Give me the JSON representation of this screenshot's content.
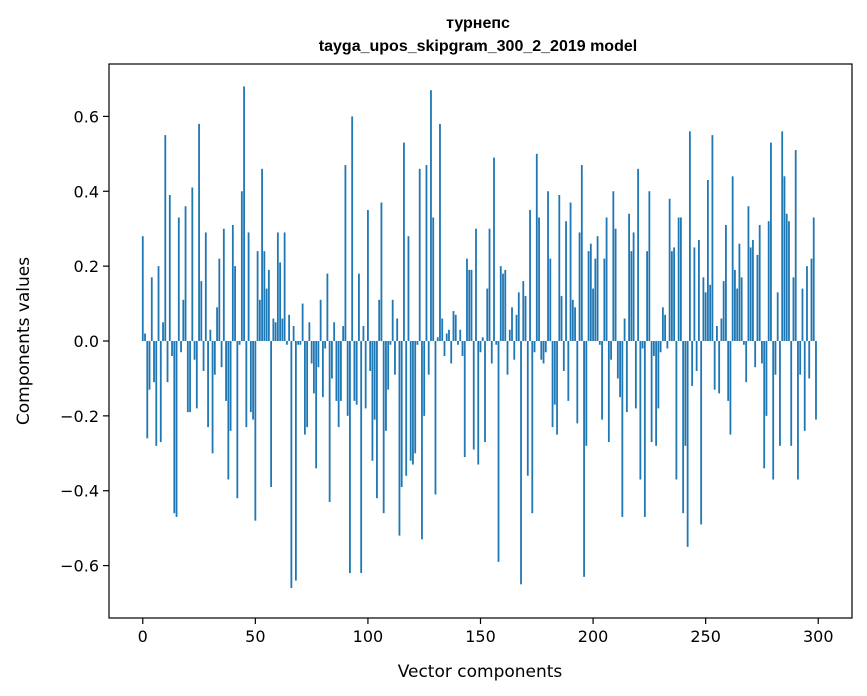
{
  "chart_data": {
    "type": "bar",
    "title": "турнепс",
    "subtitle": "tayga_upos_skipgram_300_2_2019 model",
    "xlabel": "Vector components",
    "ylabel": "Components values",
    "xlim": [
      -15,
      315
    ],
    "ylim": [
      -0.74,
      0.74
    ],
    "xticks": [
      0,
      50,
      100,
      150,
      200,
      250,
      300
    ],
    "xtick_labels": [
      "0",
      "50",
      "100",
      "150",
      "200",
      "250",
      "300"
    ],
    "yticks": [
      -0.6,
      -0.4,
      -0.2,
      0.0,
      0.2,
      0.4,
      0.6
    ],
    "ytick_labels": [
      "−0.6",
      "−0.4",
      "−0.2",
      "0.0",
      "0.2",
      "0.4",
      "0.6"
    ],
    "grid": false,
    "bar_color": "#1f77b4",
    "x": [
      0,
      1,
      2,
      3,
      4,
      5,
      6,
      7,
      8,
      9,
      10,
      11,
      12,
      13,
      14,
      15,
      16,
      17,
      18,
      19,
      20,
      21,
      22,
      23,
      24,
      25,
      26,
      27,
      28,
      29,
      30,
      31,
      32,
      33,
      34,
      35,
      36,
      37,
      38,
      39,
      40,
      41,
      42,
      43,
      44,
      45,
      46,
      47,
      48,
      49,
      50,
      51,
      52,
      53,
      54,
      55,
      56,
      57,
      58,
      59,
      60,
      61,
      62,
      63,
      64,
      65,
      66,
      67,
      68,
      69,
      70,
      71,
      72,
      73,
      74,
      75,
      76,
      77,
      78,
      79,
      80,
      81,
      82,
      83,
      84,
      85,
      86,
      87,
      88,
      89,
      90,
      91,
      92,
      93,
      94,
      95,
      96,
      97,
      98,
      99,
      100,
      101,
      102,
      103,
      104,
      105,
      106,
      107,
      108,
      109,
      110,
      111,
      112,
      113,
      114,
      115,
      116,
      117,
      118,
      119,
      120,
      121,
      122,
      123,
      124,
      125,
      126,
      127,
      128,
      129,
      130,
      131,
      132,
      133,
      134,
      135,
      136,
      137,
      138,
      139,
      140,
      141,
      142,
      143,
      144,
      145,
      146,
      147,
      148,
      149,
      150,
      151,
      152,
      153,
      154,
      155,
      156,
      157,
      158,
      159,
      160,
      161,
      162,
      163,
      164,
      165,
      166,
      167,
      168,
      169,
      170,
      171,
      172,
      173,
      174,
      175,
      176,
      177,
      178,
      179,
      180,
      181,
      182,
      183,
      184,
      185,
      186,
      187,
      188,
      189,
      190,
      191,
      192,
      193,
      194,
      195,
      196,
      197,
      198,
      199,
      200,
      201,
      202,
      203,
      204,
      205,
      206,
      207,
      208,
      209,
      210,
      211,
      212,
      213,
      214,
      215,
      216,
      217,
      218,
      219,
      220,
      221,
      222,
      223,
      224,
      225,
      226,
      227,
      228,
      229,
      230,
      231,
      232,
      233,
      234,
      235,
      236,
      237,
      238,
      239,
      240,
      241,
      242,
      243,
      244,
      245,
      246,
      247,
      248,
      249,
      250,
      251,
      252,
      253,
      254,
      255,
      256,
      257,
      258,
      259,
      260,
      261,
      262,
      263,
      264,
      265,
      266,
      267,
      268,
      269,
      270,
      271,
      272,
      273,
      274,
      275,
      276,
      277,
      278,
      279,
      280,
      281,
      282,
      283,
      284,
      285,
      286,
      287,
      288,
      289,
      290,
      291,
      292,
      293,
      294,
      295,
      296,
      297,
      298,
      299
    ],
    "values": [
      0.28,
      0.02,
      -0.26,
      -0.13,
      0.17,
      -0.11,
      -0.28,
      0.2,
      -0.27,
      0.05,
      0.55,
      -0.11,
      0.39,
      -0.04,
      -0.46,
      -0.47,
      0.33,
      -0.03,
      0.11,
      0.36,
      -0.19,
      -0.19,
      0.41,
      -0.05,
      -0.18,
      0.58,
      0.16,
      -0.08,
      0.29,
      -0.23,
      0.03,
      -0.3,
      -0.09,
      0.09,
      0.22,
      -0.07,
      0.3,
      -0.16,
      -0.37,
      -0.24,
      0.31,
      0.2,
      -0.42,
      -0.01,
      0.4,
      0.68,
      -0.23,
      0.29,
      -0.19,
      -0.21,
      -0.48,
      0.24,
      0.11,
      0.46,
      0.24,
      0.14,
      0.19,
      -0.39,
      0.06,
      0.05,
      0.29,
      0.21,
      0.06,
      0.29,
      -0.01,
      0.07,
      -0.66,
      0.04,
      -0.64,
      -0.01,
      -0.01,
      0.1,
      -0.25,
      -0.23,
      0.05,
      -0.06,
      -0.14,
      -0.34,
      -0.07,
      0.11,
      -0.15,
      -0.02,
      0.18,
      -0.43,
      -0.1,
      0.05,
      -0.16,
      -0.23,
      -0.16,
      0.04,
      0.47,
      -0.2,
      -0.62,
      0.6,
      -0.16,
      -0.17,
      0.18,
      -0.62,
      0.04,
      -0.18,
      0.35,
      -0.08,
      -0.32,
      -0.21,
      -0.42,
      0.11,
      0.37,
      -0.46,
      -0.24,
      -0.13,
      -0.01,
      0.11,
      -0.09,
      0.06,
      -0.52,
      -0.39,
      0.53,
      -0.36,
      0.28,
      -0.32,
      -0.33,
      -0.3,
      -0.01,
      0.46,
      -0.53,
      -0.2,
      0.47,
      -0.09,
      0.67,
      0.33,
      -0.41,
      0.01,
      0.58,
      0.06,
      -0.04,
      0.02,
      0.03,
      -0.06,
      0.08,
      0.07,
      -0.01,
      0.03,
      -0.04,
      -0.31,
      0.22,
      0.19,
      0.19,
      -0.29,
      0.3,
      -0.33,
      -0.03,
      0.01,
      -0.27,
      0.14,
      0.3,
      -0.06,
      0.49,
      -0.01,
      -0.59,
      0.2,
      0.18,
      0.19,
      -0.09,
      0.03,
      0.09,
      -0.05,
      0.07,
      0.13,
      -0.65,
      0.16,
      0.12,
      -0.36,
      0.35,
      -0.46,
      -0.03,
      0.5,
      0.33,
      -0.05,
      -0.06,
      -0.03,
      0.4,
      0.22,
      -0.23,
      -0.17,
      -0.25,
      0.39,
      0.12,
      -0.08,
      0.32,
      -0.16,
      0.37,
      0.11,
      0.09,
      -0.22,
      0.29,
      0.47,
      -0.63,
      -0.28,
      0.24,
      0.26,
      0.14,
      0.22,
      0.28,
      -0.01,
      -0.21,
      0.22,
      0.33,
      -0.27,
      -0.05,
      0.4,
      0.3,
      -0.1,
      -0.15,
      -0.47,
      0.06,
      -0.19,
      0.34,
      0.24,
      0.29,
      -0.18,
      0.46,
      -0.37,
      -0.02,
      -0.47,
      0.24,
      0.4,
      -0.27,
      -0.04,
      -0.28,
      -0.18,
      -0.03,
      0.09,
      0.07,
      -0.02,
      0.38,
      0.24,
      0.25,
      -0.37,
      0.33,
      0.33,
      -0.46,
      -0.28,
      -0.55,
      0.56,
      -0.12,
      0.25,
      -0.08,
      0.27,
      -0.49,
      0.17,
      0.13,
      0.43,
      0.15,
      0.55,
      -0.13,
      0.04,
      -0.14,
      0.06,
      0.16,
      0.31,
      -0.16,
      -0.25,
      0.44,
      0.19,
      0.14,
      0.26,
      0.17,
      -0.01,
      -0.11,
      0.36,
      0.25,
      0.27,
      -0.07,
      0.23,
      0.31,
      -0.06,
      -0.34,
      -0.2,
      0.32,
      0.53,
      -0.37,
      -0.09,
      0.13,
      -0.28,
      0.56,
      0.44,
      0.34,
      0.32,
      -0.28,
      0.17,
      0.51,
      -0.37,
      -0.09,
      0.14,
      -0.24,
      0.2,
      -0.1,
      0.22,
      0.33,
      -0.21
    ]
  }
}
